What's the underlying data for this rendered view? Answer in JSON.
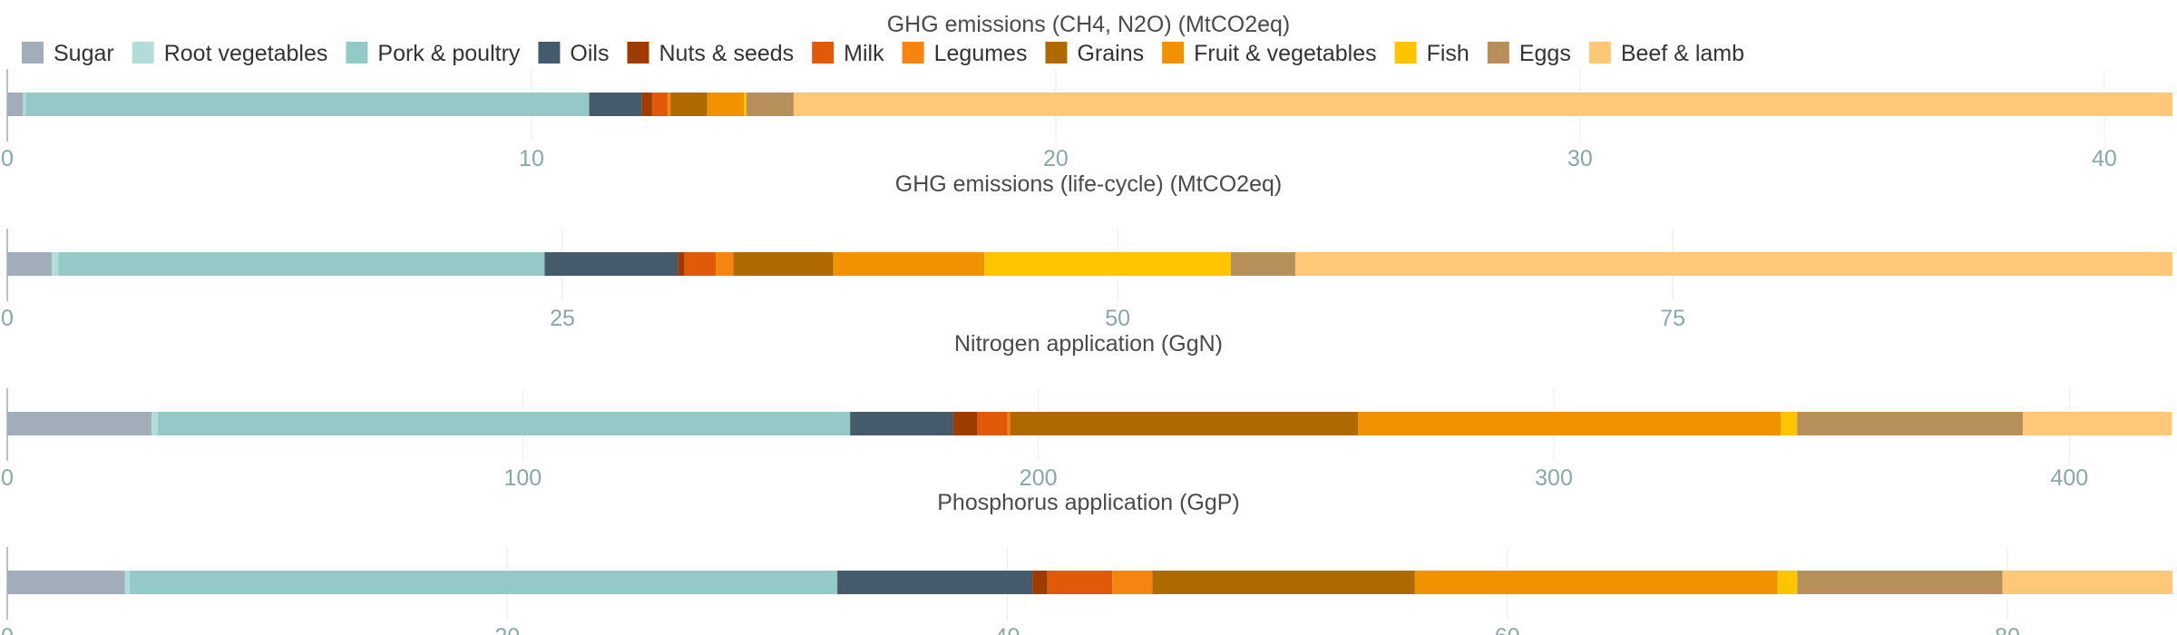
{
  "chart_data": {
    "type": "bar",
    "orientation": "horizontal-stacked",
    "legend": {
      "placement": "top-left",
      "entries": [
        {
          "name": "Sugar",
          "color": "#a2adb9"
        },
        {
          "name": "Root vegetables",
          "color": "#b3dbd8"
        },
        {
          "name": "Pork & poultry",
          "color": "#95c9c8"
        },
        {
          "name": "Oils",
          "color": "#455a6b"
        },
        {
          "name": "Nuts & seeds",
          "color": "#9e3b00"
        },
        {
          "name": "Milk",
          "color": "#e15a0a"
        },
        {
          "name": "Legumes",
          "color": "#f68411"
        },
        {
          "name": "Grains",
          "color": "#b06a02"
        },
        {
          "name": "Fruit & vegetables",
          "color": "#f39200"
        },
        {
          "name": "Fish",
          "color": "#fec400"
        },
        {
          "name": "Eggs",
          "color": "#b78f5b"
        },
        {
          "name": "Beef & lamb",
          "color": "#ffc879"
        }
      ]
    },
    "grid": true,
    "panels": [
      {
        "title": "GHG emissions (CH4, N2O) (MtCO2eq)",
        "xlim": [
          0,
          41.3
        ],
        "ticks": [
          0,
          10,
          20,
          30,
          40
        ],
        "values": [
          {
            "series": "Sugar",
            "value": 0.3
          },
          {
            "series": "Root vegetables",
            "value": 0.05
          },
          {
            "series": "Pork & poultry",
            "value": 10.75
          },
          {
            "series": "Oils",
            "value": 1.0
          },
          {
            "series": "Nuts & seeds",
            "value": 0.2
          },
          {
            "series": "Milk",
            "value": 0.3
          },
          {
            "series": "Legumes",
            "value": 0.05
          },
          {
            "series": "Grains",
            "value": 0.7
          },
          {
            "series": "Fruit & vegetables",
            "value": 0.7
          },
          {
            "series": "Fish",
            "value": 0.05
          },
          {
            "series": "Eggs",
            "value": 0.9
          },
          {
            "series": "Beef & lamb",
            "value": 26.3
          }
        ]
      },
      {
        "title": "GHG emissions (life-cycle) (MtCO2eq)",
        "xlim": [
          0,
          97.5
        ],
        "ticks": [
          0,
          25,
          50,
          75
        ],
        "values": [
          {
            "series": "Sugar",
            "value": 2.0
          },
          {
            "series": "Root vegetables",
            "value": 0.3
          },
          {
            "series": "Pork & poultry",
            "value": 21.9
          },
          {
            "series": "Oils",
            "value": 6.0
          },
          {
            "series": "Nuts & seeds",
            "value": 0.3
          },
          {
            "series": "Milk",
            "value": 1.4
          },
          {
            "series": "Legumes",
            "value": 0.8
          },
          {
            "series": "Grains",
            "value": 4.5
          },
          {
            "series": "Fruit & vegetables",
            "value": 6.8
          },
          {
            "series": "Fish",
            "value": 11.1
          },
          {
            "series": "Eggs",
            "value": 2.9
          },
          {
            "series": "Beef & lamb",
            "value": 39.5
          }
        ]
      },
      {
        "title": "Nitrogen application (GgN)",
        "xlim": [
          0,
          420
        ],
        "ticks": [
          0,
          100,
          200,
          300,
          400
        ],
        "values": [
          {
            "series": "Sugar",
            "value": 28
          },
          {
            "series": "Root vegetables",
            "value": 1.2
          },
          {
            "series": "Pork & poultry",
            "value": 134.3
          },
          {
            "series": "Oils",
            "value": 20
          },
          {
            "series": "Nuts & seeds",
            "value": 4.7
          },
          {
            "series": "Milk",
            "value": 5.8
          },
          {
            "series": "Legumes",
            "value": 0.5
          },
          {
            "series": "Grains",
            "value": 67.5
          },
          {
            "series": "Fruit & vegetables",
            "value": 82
          },
          {
            "series": "Fish",
            "value": 3.2
          },
          {
            "series": "Eggs",
            "value": 43.8
          },
          {
            "series": "Beef & lamb",
            "value": 28.9
          }
        ]
      },
      {
        "title": "Phosphorus application (GgP)",
        "xlim": [
          0,
          86.6
        ],
        "ticks": [
          0,
          20,
          40,
          60,
          80
        ],
        "values": [
          {
            "series": "Sugar",
            "value": 4.7
          },
          {
            "series": "Root vegetables",
            "value": 0.2
          },
          {
            "series": "Pork & poultry",
            "value": 28.3
          },
          {
            "series": "Oils",
            "value": 7.8
          },
          {
            "series": "Nuts & seeds",
            "value": 0.6
          },
          {
            "series": "Milk",
            "value": 2.6
          },
          {
            "series": "Legumes",
            "value": 1.6
          },
          {
            "series": "Grains",
            "value": 10.5
          },
          {
            "series": "Fruit & vegetables",
            "value": 14.5
          },
          {
            "series": "Fish",
            "value": 0.8
          },
          {
            "series": "Eggs",
            "value": 8.2
          },
          {
            "series": "Beef & lamb",
            "value": 6.8
          }
        ]
      }
    ]
  }
}
